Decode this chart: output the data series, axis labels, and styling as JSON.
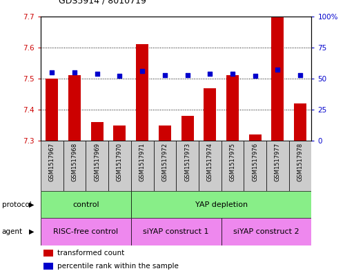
{
  "title": "GDS5914 / 8010719",
  "samples": [
    "GSM1517967",
    "GSM1517968",
    "GSM1517969",
    "GSM1517970",
    "GSM1517971",
    "GSM1517972",
    "GSM1517973",
    "GSM1517974",
    "GSM1517975",
    "GSM1517976",
    "GSM1517977",
    "GSM1517978"
  ],
  "transformed_count": [
    7.5,
    7.51,
    7.36,
    7.35,
    7.61,
    7.35,
    7.38,
    7.47,
    7.51,
    7.32,
    7.7,
    7.42
  ],
  "percentile_rank": [
    55,
    55,
    54,
    52,
    56,
    53,
    53,
    54,
    54,
    52,
    57,
    53
  ],
  "ylim_left": [
    7.3,
    7.7
  ],
  "ylim_right": [
    0,
    100
  ],
  "yticks_left": [
    7.3,
    7.4,
    7.5,
    7.6,
    7.7
  ],
  "yticks_right": [
    0,
    25,
    50,
    75,
    100
  ],
  "ytick_labels_right": [
    "0",
    "25",
    "50",
    "75",
    "100%"
  ],
  "bar_color": "#cc0000",
  "dot_color": "#0000cc",
  "bg_color": "#ffffff",
  "protocol_color": "#88ee88",
  "agent_color": "#ee88ee",
  "label_bg_color": "#cccccc",
  "legend_items": [
    "transformed count",
    "percentile rank within the sample"
  ],
  "bar_width": 0.55
}
